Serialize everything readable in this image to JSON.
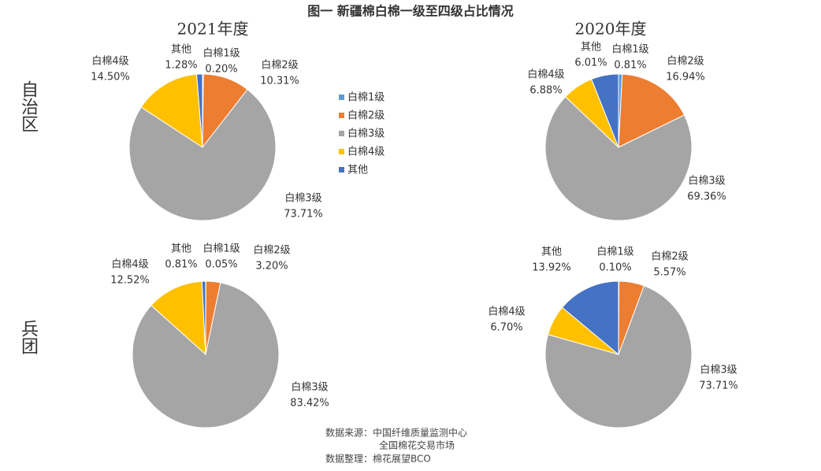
{
  "title": "图一  新疆棉白棉一级至四级占比情况",
  "row_labels": [
    "自治区",
    "兵团"
  ],
  "source": [
    "数据来源：中国纤维质量监测中心",
    "全国棉花交易市场",
    "数据整理：棉花展望BCO"
  ],
  "chart_data": [
    {
      "type": "pie",
      "title": "2021年度",
      "legend": "right",
      "categories": [
        "白棉1级",
        "白棉2级",
        "白棉3级",
        "白棉4级",
        "其他"
      ],
      "colors": [
        "#5b9bd5",
        "#ed7d31",
        "#a5a5a5",
        "#ffc000",
        "#4472c4"
      ],
      "values": [
        0.2,
        10.31,
        73.71,
        14.5,
        1.28
      ],
      "value_labels": [
        "0.20%",
        "10.31%",
        "73.71%",
        "14.50%",
        "1.28%"
      ]
    },
    {
      "type": "pie",
      "title": "2020年度",
      "categories": [
        "白棉1级",
        "白棉2级",
        "白棉3级",
        "白棉4级",
        "其他"
      ],
      "colors": [
        "#5b9bd5",
        "#ed7d31",
        "#a5a5a5",
        "#ffc000",
        "#4472c4"
      ],
      "values": [
        0.81,
        16.94,
        69.36,
        6.88,
        6.01
      ],
      "value_labels": [
        "0.81%",
        "16.94%",
        "69.36%",
        "6.88%",
        "6.01%"
      ]
    },
    {
      "type": "pie",
      "categories": [
        "白棉1级",
        "白棉2级",
        "白棉3级",
        "白棉4级",
        "其他"
      ],
      "colors": [
        "#5b9bd5",
        "#ed7d31",
        "#a5a5a5",
        "#ffc000",
        "#4472c4"
      ],
      "values": [
        0.05,
        3.2,
        83.42,
        12.52,
        0.81
      ],
      "value_labels": [
        "0.05%",
        "3.20%",
        "83.42%",
        "12.52%",
        "0.81%"
      ]
    },
    {
      "type": "pie",
      "categories": [
        "白棉1级",
        "白棉2级",
        "白棉3级",
        "白棉4级",
        "其他"
      ],
      "colors": [
        "#5b9bd5",
        "#ed7d31",
        "#a5a5a5",
        "#ffc000",
        "#4472c4"
      ],
      "values": [
        0.1,
        5.57,
        73.71,
        6.7,
        13.92
      ],
      "value_labels": [
        "0.10%",
        "5.57%",
        "73.71%",
        "6.70%",
        "13.92%"
      ]
    }
  ]
}
